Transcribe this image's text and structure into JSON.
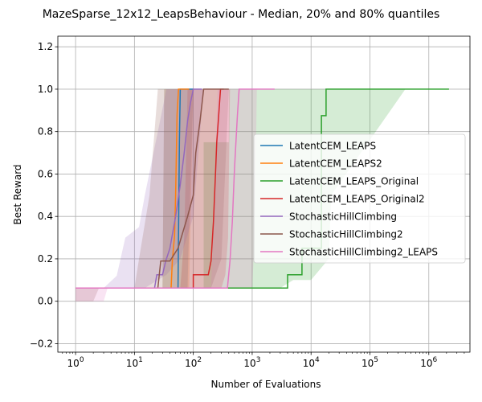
{
  "chart_data": {
    "type": "line",
    "title": "MazeSparse_12x12_LeapsBehaviour - Median, 20% and 80% quantiles",
    "xlabel": "Number of Evaluations",
    "ylabel": "Best Reward",
    "xscale": "log",
    "xlim": [
      0.5,
      5000000
    ],
    "ylim": [
      -0.24,
      1.25
    ],
    "x_tick_values": [
      1,
      10,
      100,
      1000,
      10000,
      100000,
      1000000
    ],
    "x_tick_labels": [
      {
        "base": "10",
        "exp": "0"
      },
      {
        "base": "10",
        "exp": "1"
      },
      {
        "base": "10",
        "exp": "2"
      },
      {
        "base": "10",
        "exp": "3"
      },
      {
        "base": "10",
        "exp": "4"
      },
      {
        "base": "10",
        "exp": "5"
      },
      {
        "base": "10",
        "exp": "6"
      }
    ],
    "y_ticks": [
      -0.2,
      0.0,
      0.2,
      0.4,
      0.6,
      0.8,
      1.0,
      1.2
    ],
    "y_tick_labels": [
      "−0.2",
      "0.0",
      "0.2",
      "0.4",
      "0.6",
      "0.8",
      "1.0",
      "1.2"
    ],
    "grid": true,
    "legend_position": "center-right",
    "series": [
      {
        "name": "LatentCEM_LEAPS",
        "color": "#1f77b4",
        "median": [
          [
            1,
            0.0625
          ],
          [
            55,
            0.0625
          ],
          [
            56,
            0.3
          ],
          [
            58,
            0.75
          ],
          [
            60,
            1.0
          ],
          [
            100,
            1.0
          ]
        ],
        "band": [
          [
            1,
            0.0625,
            0.0625
          ],
          [
            30,
            0.0625,
            0.0625
          ],
          [
            32,
            0.0625,
            1.0
          ],
          [
            80,
            0.0625,
            1.0
          ],
          [
            82,
            0.2,
            1.0
          ],
          [
            100,
            1.0,
            1.0
          ]
        ]
      },
      {
        "name": "LatentCEM_LEAPS2",
        "color": "#ff7f0e",
        "median": [
          [
            1,
            0.0625
          ],
          [
            42,
            0.0625
          ],
          [
            44,
            0.19
          ],
          [
            48,
            0.31
          ],
          [
            50,
            0.5
          ],
          [
            52,
            0.75
          ],
          [
            53,
            0.88
          ],
          [
            56,
            1.0
          ],
          [
            85,
            1.0
          ]
        ],
        "band": [
          [
            1,
            0.0625,
            0.0625
          ],
          [
            30,
            0.0625,
            0.0625
          ],
          [
            32,
            0.0625,
            1.0
          ],
          [
            85,
            0.0625,
            1.0
          ],
          [
            90,
            0.4,
            1.0
          ],
          [
            100,
            1.0,
            1.0
          ]
        ]
      },
      {
        "name": "LatentCEM_LEAPS_Original",
        "color": "#2ca02c",
        "median": [
          [
            1,
            0.0625
          ],
          [
            4000,
            0.0625
          ],
          [
            4000,
            0.125
          ],
          [
            7000,
            0.125
          ],
          [
            7000,
            0.25
          ],
          [
            15000,
            0.25
          ],
          [
            15000,
            0.875
          ],
          [
            18000,
            0.875
          ],
          [
            18000,
            1.0
          ],
          [
            2200000,
            1.0
          ]
        ],
        "band": [
          [
            1,
            0.0625,
            0.0625
          ],
          [
            150,
            0.0625,
            0.0625
          ],
          [
            150,
            0.0625,
            0.75
          ],
          [
            400,
            0.0625,
            0.75
          ],
          [
            400,
            0.0625,
            1.0
          ],
          [
            2000,
            0.0625,
            1.0
          ],
          [
            3000,
            0.0625,
            1.0
          ],
          [
            5000,
            0.1,
            1.0
          ],
          [
            10000,
            0.1,
            1.0
          ],
          [
            20000,
            0.2,
            1.0
          ],
          [
            22000,
            0.5,
            1.0
          ],
          [
            400000,
            1.0,
            1.0
          ]
        ]
      },
      {
        "name": "LatentCEM_LEAPS_Original2",
        "color": "#d62728",
        "median": [
          [
            1,
            0.0625
          ],
          [
            100,
            0.0625
          ],
          [
            100,
            0.125
          ],
          [
            180,
            0.125
          ],
          [
            200,
            0.19
          ],
          [
            220,
            0.375
          ],
          [
            240,
            0.625
          ],
          [
            250,
            0.75
          ],
          [
            270,
            0.875
          ],
          [
            290,
            1.0
          ],
          [
            330,
            1.0
          ]
        ],
        "band": [
          [
            1,
            0.0625,
            0.0625
          ],
          [
            60,
            0.0625,
            0.0625
          ],
          [
            70,
            0.0625,
            0.3
          ],
          [
            80,
            0.0625,
            1.0
          ],
          [
            300,
            0.0625,
            1.0
          ],
          [
            350,
            0.125,
            1.0
          ],
          [
            390,
            0.3,
            1.0
          ],
          [
            420,
            1.0,
            1.0
          ]
        ]
      },
      {
        "name": "StochasticHillClimbing",
        "color": "#9467bd",
        "median": [
          [
            1,
            0.0625
          ],
          [
            22,
            0.0625
          ],
          [
            24,
            0.125
          ],
          [
            30,
            0.125
          ],
          [
            34,
            0.19
          ],
          [
            40,
            0.25
          ],
          [
            50,
            0.4
          ],
          [
            60,
            0.55
          ],
          [
            70,
            0.7
          ],
          [
            80,
            0.85
          ],
          [
            90,
            0.94
          ],
          [
            100,
            1.0
          ],
          [
            140,
            1.0
          ]
        ],
        "band": [
          [
            1,
            0.0625,
            0.0625
          ],
          [
            3,
            0.0625,
            0.0625
          ],
          [
            5,
            0.0625,
            0.12
          ],
          [
            7,
            0.0625,
            0.3
          ],
          [
            12,
            0.0625,
            0.35
          ],
          [
            15,
            0.0625,
            0.5
          ],
          [
            25,
            0.1,
            0.8
          ],
          [
            35,
            0.125,
            1.0
          ],
          [
            60,
            0.2,
            1.0
          ],
          [
            100,
            0.4,
            1.0
          ],
          [
            150,
            1.0,
            1.0
          ]
        ]
      },
      {
        "name": "StochasticHillClimbing2",
        "color": "#8c564b",
        "median": [
          [
            1,
            0.0625
          ],
          [
            25,
            0.0625
          ],
          [
            28,
            0.19
          ],
          [
            40,
            0.19
          ],
          [
            55,
            0.25
          ],
          [
            80,
            0.4
          ],
          [
            100,
            0.5
          ],
          [
            110,
            0.7
          ],
          [
            130,
            0.85
          ],
          [
            150,
            1.0
          ],
          [
            400,
            1.0
          ]
        ],
        "band": [
          [
            1,
            0.0625,
            0.0
          ],
          [
            2,
            0.0625,
            0.0
          ],
          [
            2.5,
            0.0625,
            0.0625
          ],
          [
            10,
            0.0625,
            0.0625
          ],
          [
            12,
            0.0625,
            0.2
          ],
          [
            18,
            0.0625,
            0.5
          ],
          [
            25,
            0.0625,
            1.0
          ],
          [
            200,
            0.0625,
            1.0
          ],
          [
            300,
            0.2,
            1.0
          ],
          [
            400,
            1.0,
            1.0
          ]
        ]
      },
      {
        "name": "StochasticHillClimbing2_LEAPS",
        "color": "#e377c2",
        "median": [
          [
            1,
            0.0625
          ],
          [
            380,
            0.0625
          ],
          [
            420,
            0.19
          ],
          [
            460,
            0.375
          ],
          [
            500,
            0.625
          ],
          [
            560,
            0.875
          ],
          [
            600,
            1.0
          ],
          [
            2400,
            1.0
          ]
        ],
        "band": [
          [
            1,
            0.0625,
            0.0
          ],
          [
            3,
            0.0625,
            0.0
          ],
          [
            3.5,
            0.0625,
            0.0625
          ],
          [
            200,
            0.0625,
            0.0625
          ],
          [
            220,
            0.0625,
            0.375
          ],
          [
            260,
            0.0625,
            1.0
          ],
          [
            1000,
            0.0625,
            1.0
          ],
          [
            1100,
            0.3,
            1.0
          ],
          [
            1200,
            1.0,
            1.0
          ]
        ]
      }
    ]
  }
}
